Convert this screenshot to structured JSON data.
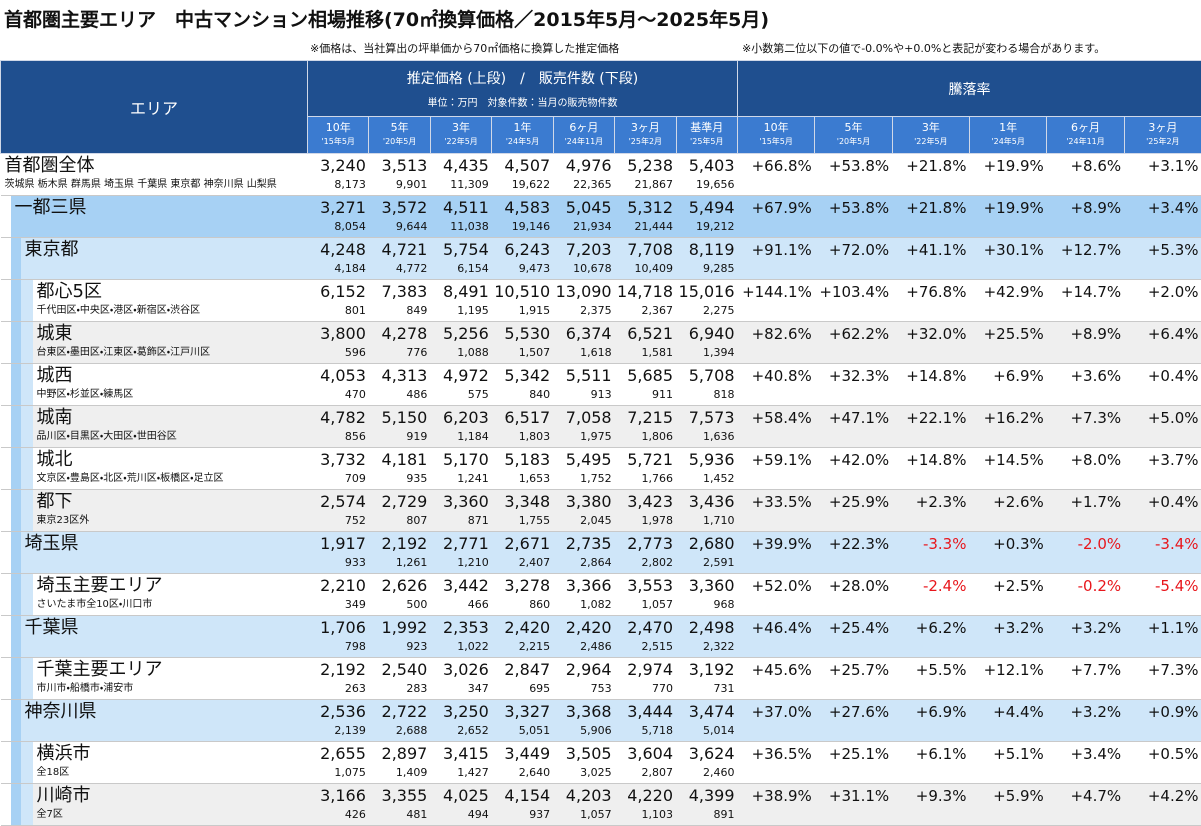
{
  "title": "首都圏主要エリア　中古マンション相場推移(70㎡換算価格／2015年5月～2025年5月)",
  "notes": [
    "※価格は、当社算出の坪単価から70㎡価格に換算した推定価格",
    "※小数第二位以下の値で-0.0%や+0.0%と表記が変わる場合があります。"
  ],
  "header": {
    "area": "エリア",
    "price_group": "推定価格 (上段)　/　販売件数 (下段)",
    "unit": "単位：万円　対象件数：当月の販売物件数",
    "rate_group": "騰落率",
    "price_columns": [
      {
        "period": "10年",
        "month": "'15年5月"
      },
      {
        "period": "5年",
        "month": "'20年5月"
      },
      {
        "period": "3年",
        "month": "'22年5月"
      },
      {
        "period": "1年",
        "month": "'24年5月"
      },
      {
        "period": "6ヶ月",
        "month": "'24年11月"
      },
      {
        "period": "3ヶ月",
        "month": "'25年2月"
      },
      {
        "period": "基準月",
        "month": "'25年5月"
      }
    ],
    "rate_columns": [
      {
        "period": "10年",
        "month": "'15年5月"
      },
      {
        "period": "5年",
        "month": "'20年5月"
      },
      {
        "period": "3年",
        "month": "'22年5月"
      },
      {
        "period": "1年",
        "month": "'24年5月"
      },
      {
        "period": "6ヶ月",
        "month": "'24年11月"
      },
      {
        "period": "3ヶ月",
        "month": "'25年2月"
      }
    ]
  },
  "table": {
    "rows": [
      {
        "name": "首都圏全体",
        "sub": "茨城県 栃木県 群馬県 埼玉県 千葉県 東京都 神奈川県 山梨県",
        "level": 0,
        "prices": [
          "3,240",
          "3,513",
          "4,435",
          "4,507",
          "4,976",
          "5,238",
          "5,403"
        ],
        "counts": [
          "8,173",
          "9,901",
          "11,309",
          "19,622",
          "22,365",
          "21,867",
          "19,656"
        ],
        "rates": [
          "+66.8%",
          "+53.8%",
          "+21.8%",
          "+19.9%",
          "+8.6%",
          "+3.1%"
        ]
      },
      {
        "name": "一都三県",
        "level": 1,
        "prices": [
          "3,271",
          "3,572",
          "4,511",
          "4,583",
          "5,045",
          "5,312",
          "5,494"
        ],
        "counts": [
          "8,054",
          "9,644",
          "11,038",
          "19,146",
          "21,934",
          "21,444",
          "19,212"
        ],
        "rates": [
          "+67.9%",
          "+53.8%",
          "+21.8%",
          "+19.9%",
          "+8.9%",
          "+3.4%"
        ]
      },
      {
        "name": "東京都",
        "level": 2,
        "prices": [
          "4,248",
          "4,721",
          "5,754",
          "6,243",
          "7,203",
          "7,708",
          "8,119"
        ],
        "counts": [
          "4,184",
          "4,772",
          "6,154",
          "9,473",
          "10,678",
          "10,409",
          "9,285"
        ],
        "rates": [
          "+91.1%",
          "+72.0%",
          "+41.1%",
          "+30.1%",
          "+12.7%",
          "+5.3%"
        ]
      },
      {
        "name": "都心5区",
        "sub": "千代田区・中央区・港区・新宿区・渋谷区",
        "level": 3,
        "prices": [
          "6,152",
          "7,383",
          "8,491",
          "10,510",
          "13,090",
          "14,718",
          "15,016"
        ],
        "counts": [
          "801",
          "849",
          "1,195",
          "1,915",
          "2,375",
          "2,367",
          "2,275"
        ],
        "rates": [
          "+144.1%",
          "+103.4%",
          "+76.8%",
          "+42.9%",
          "+14.7%",
          "+2.0%"
        ]
      },
      {
        "name": "城東",
        "sub": "台東区・墨田区・江東区・葛飾区・江戸川区",
        "level": 3,
        "prices": [
          "3,800",
          "4,278",
          "5,256",
          "5,530",
          "6,374",
          "6,521",
          "6,940"
        ],
        "counts": [
          "596",
          "776",
          "1,088",
          "1,507",
          "1,618",
          "1,581",
          "1,394"
        ],
        "rates": [
          "+82.6%",
          "+62.2%",
          "+32.0%",
          "+25.5%",
          "+8.9%",
          "+6.4%"
        ]
      },
      {
        "name": "城西",
        "sub": "中野区・杉並区・練馬区",
        "level": 3,
        "prices": [
          "4,053",
          "4,313",
          "4,972",
          "5,342",
          "5,511",
          "5,685",
          "5,708"
        ],
        "counts": [
          "470",
          "486",
          "575",
          "840",
          "913",
          "911",
          "818"
        ],
        "rates": [
          "+40.8%",
          "+32.3%",
          "+14.8%",
          "+6.9%",
          "+3.6%",
          "+0.4%"
        ]
      },
      {
        "name": "城南",
        "sub": "品川区・目黒区・大田区・世田谷区",
        "level": 3,
        "prices": [
          "4,782",
          "5,150",
          "6,203",
          "6,517",
          "7,058",
          "7,215",
          "7,573"
        ],
        "counts": [
          "856",
          "919",
          "1,184",
          "1,803",
          "1,975",
          "1,806",
          "1,636"
        ],
        "rates": [
          "+58.4%",
          "+47.1%",
          "+22.1%",
          "+16.2%",
          "+7.3%",
          "+5.0%"
        ]
      },
      {
        "name": "城北",
        "sub": "文京区・豊島区・北区・荒川区・板橋区・足立区",
        "level": 3,
        "prices": [
          "3,732",
          "4,181",
          "5,170",
          "5,183",
          "5,495",
          "5,721",
          "5,936"
        ],
        "counts": [
          "709",
          "935",
          "1,241",
          "1,653",
          "1,752",
          "1,766",
          "1,452"
        ],
        "rates": [
          "+59.1%",
          "+42.0%",
          "+14.8%",
          "+14.5%",
          "+8.0%",
          "+3.7%"
        ]
      },
      {
        "name": "都下",
        "sub": "東京23区外",
        "level": 3,
        "prices": [
          "2,574",
          "2,729",
          "3,360",
          "3,348",
          "3,380",
          "3,423",
          "3,436"
        ],
        "counts": [
          "752",
          "807",
          "871",
          "1,755",
          "2,045",
          "1,978",
          "1,710"
        ],
        "rates": [
          "+33.5%",
          "+25.9%",
          "+2.3%",
          "+2.6%",
          "+1.7%",
          "+0.4%"
        ]
      },
      {
        "name": "埼玉県",
        "level": 2,
        "prices": [
          "1,917",
          "2,192",
          "2,771",
          "2,671",
          "2,735",
          "2,773",
          "2,680"
        ],
        "counts": [
          "933",
          "1,261",
          "1,210",
          "2,407",
          "2,864",
          "2,802",
          "2,591"
        ],
        "rates": [
          "+39.9%",
          "+22.3%",
          "-3.3%",
          "+0.3%",
          "-2.0%",
          "-3.4%"
        ]
      },
      {
        "name": "埼玉主要エリア",
        "sub": "さいたま市全10区・川口市",
        "level": 3,
        "prices": [
          "2,210",
          "2,626",
          "3,442",
          "3,278",
          "3,366",
          "3,553",
          "3,360"
        ],
        "counts": [
          "349",
          "500",
          "466",
          "860",
          "1,082",
          "1,057",
          "968"
        ],
        "rates": [
          "+52.0%",
          "+28.0%",
          "-2.4%",
          "+2.5%",
          "-0.2%",
          "-5.4%"
        ]
      },
      {
        "name": "千葉県",
        "level": 2,
        "prices": [
          "1,706",
          "1,992",
          "2,353",
          "2,420",
          "2,420",
          "2,470",
          "2,498"
        ],
        "counts": [
          "798",
          "923",
          "1,022",
          "2,215",
          "2,486",
          "2,515",
          "2,322"
        ],
        "rates": [
          "+46.4%",
          "+25.4%",
          "+6.2%",
          "+3.2%",
          "+3.2%",
          "+1.1%"
        ]
      },
      {
        "name": "千葉主要エリア",
        "sub": "市川市・船橋市・浦安市",
        "level": 3,
        "prices": [
          "2,192",
          "2,540",
          "3,026",
          "2,847",
          "2,964",
          "2,974",
          "3,192"
        ],
        "counts": [
          "263",
          "283",
          "347",
          "695",
          "753",
          "770",
          "731"
        ],
        "rates": [
          "+45.6%",
          "+25.7%",
          "+5.5%",
          "+12.1%",
          "+7.7%",
          "+7.3%"
        ]
      },
      {
        "name": "神奈川県",
        "level": 2,
        "prices": [
          "2,536",
          "2,722",
          "3,250",
          "3,327",
          "3,368",
          "3,444",
          "3,474"
        ],
        "counts": [
          "2,139",
          "2,688",
          "2,652",
          "5,051",
          "5,906",
          "5,718",
          "5,014"
        ],
        "rates": [
          "+37.0%",
          "+27.6%",
          "+6.9%",
          "+4.4%",
          "+3.2%",
          "+0.9%"
        ]
      },
      {
        "name": "横浜市",
        "sub": "全18区",
        "level": 3,
        "prices": [
          "2,655",
          "2,897",
          "3,415",
          "3,449",
          "3,505",
          "3,604",
          "3,624"
        ],
        "counts": [
          "1,075",
          "1,409",
          "1,427",
          "2,640",
          "3,025",
          "2,807",
          "2,460"
        ],
        "rates": [
          "+36.5%",
          "+25.1%",
          "+6.1%",
          "+5.1%",
          "+3.4%",
          "+0.5%"
        ]
      },
      {
        "name": "川崎市",
        "sub": "全7区",
        "level": 3,
        "prices": [
          "3,166",
          "3,355",
          "4,025",
          "4,154",
          "4,203",
          "4,220",
          "4,399"
        ],
        "counts": [
          "426",
          "481",
          "494",
          "937",
          "1,057",
          "1,103",
          "891"
        ],
        "rates": [
          "+38.9%",
          "+31.1%",
          "+9.3%",
          "+5.9%",
          "+4.7%",
          "+4.2%"
        ]
      }
    ]
  }
}
